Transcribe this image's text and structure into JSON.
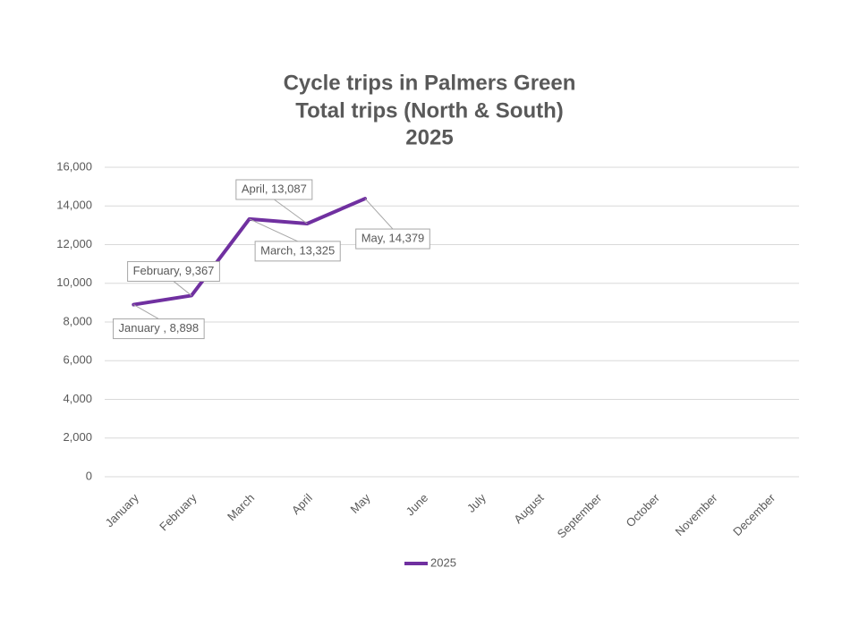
{
  "chart_data": {
    "type": "line",
    "title": [
      "Cycle trips in Palmers Green",
      "Total trips (North & South)",
      "2025"
    ],
    "categories": [
      "January",
      "February",
      "March",
      "April",
      "May",
      "June",
      "July",
      "August",
      "September",
      "October",
      "November",
      "December"
    ],
    "series": [
      {
        "name": "2025",
        "color": "#7030a0",
        "values": [
          8898,
          9367,
          13325,
          13087,
          14379,
          null,
          null,
          null,
          null,
          null,
          null,
          null
        ],
        "value_labels": [
          "January , 8,898",
          "February, 9,367",
          "March, 13,325",
          "April, 13,087",
          "May, 14,379",
          null,
          null,
          null,
          null,
          null,
          null,
          null
        ]
      }
    ],
    "ylim": [
      0,
      16000
    ],
    "yticks": [
      0,
      {
        "value": 2000,
        "label": "2,000"
      },
      {
        "value": 4000,
        "label": "4,000"
      },
      {
        "value": 6000,
        "label": "6,000"
      },
      {
        "value": 8000,
        "label": "8,000"
      },
      {
        "value": 10000,
        "label": "10,000"
      },
      {
        "value": 12000,
        "label": "12,000"
      },
      {
        "value": 14000,
        "label": "14,000"
      },
      {
        "value": 16000,
        "label": "16,000"
      }
    ],
    "grid": true,
    "legend": "bottom"
  }
}
